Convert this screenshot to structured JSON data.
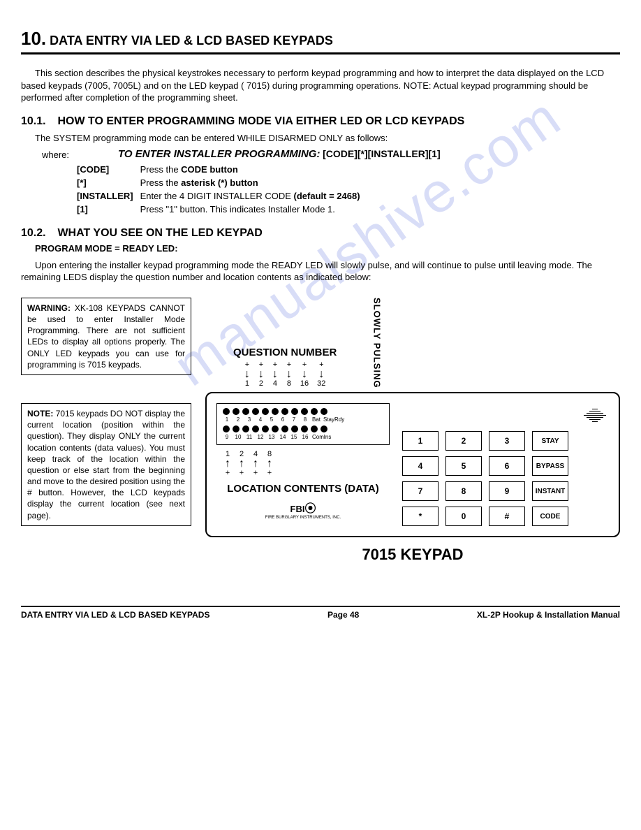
{
  "watermark": "manualshive.com",
  "header": {
    "num": "10.",
    "title": "DATA ENTRY VIA LED & LCD BASED KEYPADS"
  },
  "intro": "This section describes the physical keystrokes necessary to perform keypad programming and how to interpret the data displayed on the LCD based keypads (7005, 7005L) and on the LED keypad ( 7015) during programming operations. NOTE: Actual keypad programming should be performed after completion of the programming sheet.",
  "s101": {
    "num": "10.1.",
    "title": "HOW TO ENTER PROGRAMMING MODE VIA EITHER LED OR LCD KEYPADS",
    "line1": "The SYSTEM programming mode can be entered WHILE DISARMED ONLY as follows:",
    "enter_label": "TO ENTER INSTALLER PROGRAMMING:",
    "enter_seq": "[CODE][*][INSTALLER][1]",
    "where": "where:",
    "defs": [
      {
        "k": "[CODE]",
        "v1": "Press the ",
        "vb": "CODE button",
        "v2": ""
      },
      {
        "k": "[*]",
        "v1": "Press the ",
        "vb": "asterisk (*) button",
        "v2": ""
      },
      {
        "k": "[INSTALLER]",
        "v1": "Enter the 4 DIGIT INSTALLER CODE ",
        "vb": "(default = 2468)",
        "v2": ""
      },
      {
        "k": "[1]",
        "v1": "Press \"1\" button. This indicates Installer Mode 1.",
        "vb": "",
        "v2": ""
      }
    ]
  },
  "s102": {
    "num": "10.2.",
    "title": "WHAT YOU SEE ON THE LED KEYPAD",
    "sub": "PROGRAM MODE = READY LED:",
    "body": "Upon entering the installer keypad programming mode the READY LED will slowly pulse, and will continue to pulse until leaving   mode. The remaining LEDS display the question number and location contents as indicated below:"
  },
  "warn_box": {
    "lead": "WARNING:",
    "text": "XK-108 KEYPADS CANNOT be used to enter Installer Mode Programming. There are not sufficient LEDs to display all options properly. The ONLY LED keypads you can use for programming is 7015 keypads."
  },
  "note_box": {
    "lead": "NOTE:",
    "text": "7015 keypads DO NOT display the current location (position within the question). They display ONLY the current location contents (data values). You must keep track of the location within the question or else start from the beginning and move to the desired position using the # button. However, the LCD keypads display the current location (see next page)."
  },
  "diagram": {
    "question_label": "QUESTION NUMBER",
    "slowly": "SLOWLY PULSING",
    "q_values": [
      "1",
      "2",
      "4",
      "8",
      "16",
      "32"
    ],
    "loc_values": [
      "1",
      "2",
      "4",
      "8"
    ],
    "location_label": "LOCATION CONTENTS (DATA)",
    "fbi": "FBI",
    "fbi_sub": "FIRE BURGLARY INSTRUMENTS, INC.",
    "led_top": [
      "1",
      "2",
      "3",
      "4",
      "5",
      "6",
      "7",
      "8",
      "Bat",
      "Stay",
      "Rdy"
    ],
    "led_bot": [
      "9",
      "10",
      "11",
      "12",
      "13",
      "14",
      "15",
      "16",
      "Com",
      "Ins",
      ""
    ],
    "buttons": [
      [
        "1",
        "2",
        "3",
        "STAY"
      ],
      [
        "4",
        "5",
        "6",
        "BYPASS"
      ],
      [
        "7",
        "8",
        "9",
        "INSTANT"
      ],
      [
        "*",
        "0",
        "#",
        "CODE"
      ]
    ],
    "caption": "7015 KEYPAD"
  },
  "footer": {
    "left": "DATA ENTRY VIA LED & LCD BASED KEYPADS",
    "page": "Page 48",
    "right": "XL-2P Hookup & Installation Manual"
  }
}
